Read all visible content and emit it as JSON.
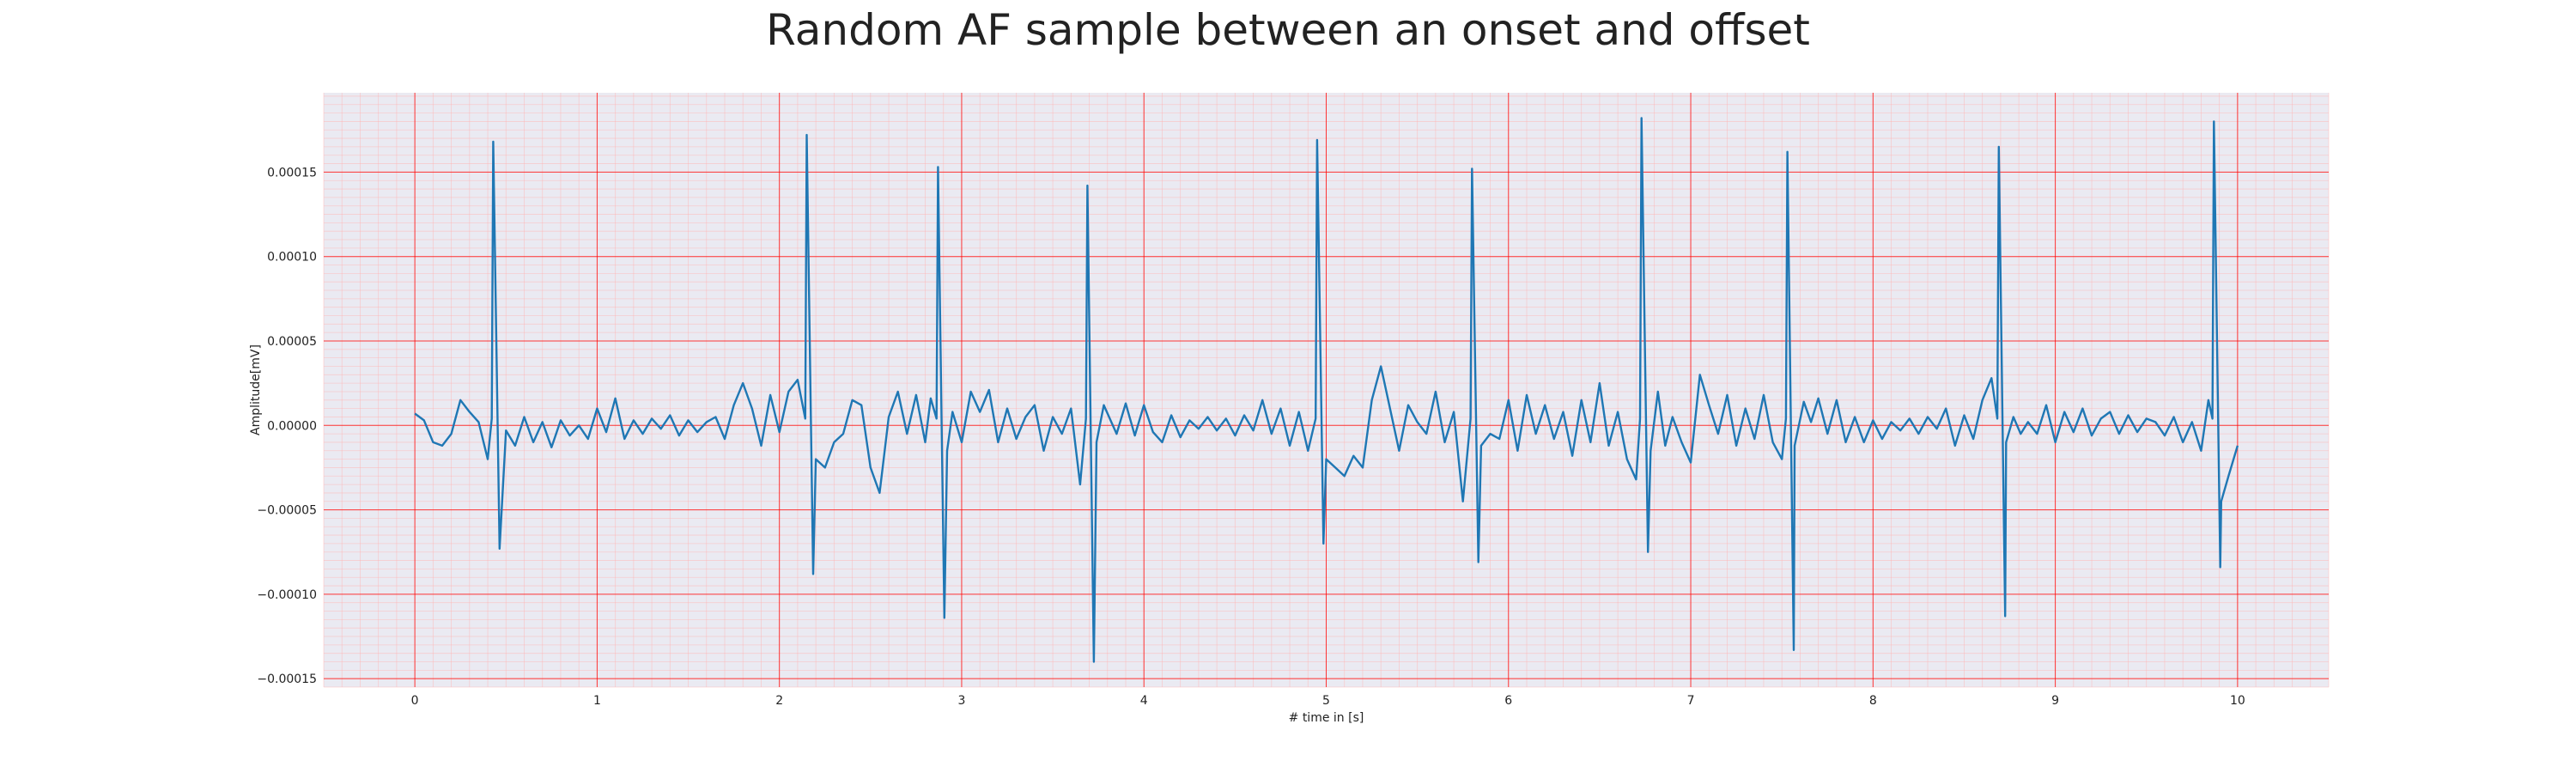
{
  "chart_data": {
    "type": "line",
    "title": "Random AF sample between an onset and offset",
    "xlabel": "# time in [s]",
    "ylabel": "Amplitude[mV]",
    "xlim": [
      -0.5,
      10.5
    ],
    "ylim": [
      -0.000155,
      0.000197
    ],
    "x_ticks": [
      0,
      1,
      2,
      3,
      4,
      5,
      6,
      7,
      8,
      9,
      10
    ],
    "x_tick_labels": [
      "0",
      "1",
      "2",
      "3",
      "4",
      "5",
      "6",
      "7",
      "8",
      "9",
      "10"
    ],
    "y_ticks": [
      -0.00015,
      -0.0001,
      -5e-05,
      0,
      5e-05,
      0.0001,
      0.00015
    ],
    "y_tick_labels": [
      "−0.00015",
      "−0.00010",
      "−0.00005",
      "0.00000",
      "0.00005",
      "0.00010",
      "0.00015"
    ],
    "grid": true,
    "minor_grid": true,
    "colors": {
      "line": "#1f77b4",
      "plot_background": "#eaeaf2",
      "major_grid": "#ff0000",
      "minor_grid": "#ffb3b3"
    },
    "series": [
      {
        "peaks": [
          [
            0.43,
            0.000168,
            -7.3e-05
          ],
          [
            2.15,
            0.000172,
            -8.8e-05
          ],
          [
            2.87,
            0.000153,
            -0.000114
          ],
          [
            3.69,
            0.000142,
            -0.00014
          ],
          [
            4.95,
            0.000169,
            -7e-05
          ],
          [
            5.8,
            0.000152,
            -8.1e-05
          ],
          [
            6.73,
            0.000182,
            -7.5e-05
          ],
          [
            7.53,
            0.000162,
            -0.000133
          ],
          [
            8.69,
            0.000165,
            -0.000113
          ],
          [
            9.87,
            0.00018,
            -8.4e-05
          ]
        ],
        "points": [
          [
            0.0,
            7e-06
          ],
          [
            0.05,
            3e-06
          ],
          [
            0.1,
            -1e-05
          ],
          [
            0.15,
            -1.2e-05
          ],
          [
            0.2,
            -5e-06
          ],
          [
            0.25,
            1.5e-05
          ],
          [
            0.3,
            8e-06
          ],
          [
            0.35,
            2e-06
          ],
          [
            0.4,
            -2e-05
          ],
          [
            0.5,
            -3e-06
          ],
          [
            0.55,
            -1.2e-05
          ],
          [
            0.6,
            5e-06
          ],
          [
            0.65,
            -1e-05
          ],
          [
            0.7,
            2e-06
          ],
          [
            0.75,
            -1.3e-05
          ],
          [
            0.8,
            3e-06
          ],
          [
            0.85,
            -6e-06
          ],
          [
            0.9,
            0.0
          ],
          [
            0.95,
            -8e-06
          ],
          [
            1.0,
            1e-05
          ],
          [
            1.05,
            -4e-06
          ],
          [
            1.1,
            1.6e-05
          ],
          [
            1.15,
            -8e-06
          ],
          [
            1.2,
            3e-06
          ],
          [
            1.25,
            -5e-06
          ],
          [
            1.3,
            4e-06
          ],
          [
            1.35,
            -2e-06
          ],
          [
            1.4,
            6e-06
          ],
          [
            1.45,
            -6e-06
          ],
          [
            1.5,
            3e-06
          ],
          [
            1.55,
            -4e-06
          ],
          [
            1.6,
            2e-06
          ],
          [
            1.65,
            5e-06
          ],
          [
            1.7,
            -8e-06
          ],
          [
            1.75,
            1.2e-05
          ],
          [
            1.8,
            2.5e-05
          ],
          [
            1.85,
            1e-05
          ],
          [
            1.9,
            -1.2e-05
          ],
          [
            1.95,
            1.8e-05
          ],
          [
            2.0,
            -4e-06
          ],
          [
            2.05,
            2e-05
          ],
          [
            2.1,
            2.7e-05
          ],
          [
            2.2,
            -2e-05
          ],
          [
            2.25,
            -2.5e-05
          ],
          [
            2.3,
            -1e-05
          ],
          [
            2.35,
            -5e-06
          ],
          [
            2.4,
            1.5e-05
          ],
          [
            2.45,
            1.2e-05
          ],
          [
            2.5,
            -2.5e-05
          ],
          [
            2.55,
            -4e-05
          ],
          [
            2.6,
            5e-06
          ],
          [
            2.65,
            2e-05
          ],
          [
            2.7,
            -5e-06
          ],
          [
            2.75,
            1.8e-05
          ],
          [
            2.8,
            -1e-05
          ],
          [
            2.83,
            1.6e-05
          ],
          [
            2.92,
            -1.5e-05
          ],
          [
            2.95,
            8e-06
          ],
          [
            3.0,
            -1e-05
          ],
          [
            3.05,
            2e-05
          ],
          [
            3.1,
            8e-06
          ],
          [
            3.15,
            2.1e-05
          ],
          [
            3.2,
            -1e-05
          ],
          [
            3.25,
            1e-05
          ],
          [
            3.3,
            -8e-06
          ],
          [
            3.35,
            5e-06
          ],
          [
            3.4,
            1.2e-05
          ],
          [
            3.45,
            -1.5e-05
          ],
          [
            3.5,
            5e-06
          ],
          [
            3.55,
            -5e-06
          ],
          [
            3.6,
            1e-05
          ],
          [
            3.65,
            -3.5e-05
          ],
          [
            3.74,
            -1e-05
          ],
          [
            3.78,
            1.2e-05
          ],
          [
            3.85,
            -5e-06
          ],
          [
            3.9,
            1.3e-05
          ],
          [
            3.95,
            -6e-06
          ],
          [
            4.0,
            1.2e-05
          ],
          [
            4.05,
            -4e-06
          ],
          [
            4.1,
            -1e-05
          ],
          [
            4.15,
            6e-06
          ],
          [
            4.2,
            -7e-06
          ],
          [
            4.25,
            3e-06
          ],
          [
            4.3,
            -2e-06
          ],
          [
            4.35,
            5e-06
          ],
          [
            4.4,
            -3e-06
          ],
          [
            4.45,
            4e-06
          ],
          [
            4.5,
            -6e-06
          ],
          [
            4.55,
            6e-06
          ],
          [
            4.6,
            -3e-06
          ],
          [
            4.65,
            1.5e-05
          ],
          [
            4.7,
            -5e-06
          ],
          [
            4.75,
            1e-05
          ],
          [
            4.8,
            -1.2e-05
          ],
          [
            4.85,
            8e-06
          ],
          [
            4.9,
            -1.5e-05
          ],
          [
            5.0,
            -2e-05
          ],
          [
            5.05,
            -2.5e-05
          ],
          [
            5.1,
            -3e-05
          ],
          [
            5.15,
            -1.8e-05
          ],
          [
            5.2,
            -2.5e-05
          ],
          [
            5.25,
            1.5e-05
          ],
          [
            5.3,
            3.5e-05
          ],
          [
            5.35,
            1e-05
          ],
          [
            5.4,
            -1.5e-05
          ],
          [
            5.45,
            1.2e-05
          ],
          [
            5.5,
            2e-06
          ],
          [
            5.55,
            -5e-06
          ],
          [
            5.6,
            2e-05
          ],
          [
            5.65,
            -1e-05
          ],
          [
            5.7,
            8e-06
          ],
          [
            5.75,
            -4.5e-05
          ],
          [
            5.85,
            -1.2e-05
          ],
          [
            5.9,
            -5e-06
          ],
          [
            5.95,
            -8e-06
          ],
          [
            6.0,
            1.5e-05
          ],
          [
            6.05,
            -1.5e-05
          ],
          [
            6.1,
            1.8e-05
          ],
          [
            6.15,
            -5e-06
          ],
          [
            6.2,
            1.2e-05
          ],
          [
            6.25,
            -8e-06
          ],
          [
            6.3,
            8e-06
          ],
          [
            6.35,
            -1.8e-05
          ],
          [
            6.4,
            1.5e-05
          ],
          [
            6.45,
            -1e-05
          ],
          [
            6.5,
            2.5e-05
          ],
          [
            6.55,
            -1.2e-05
          ],
          [
            6.6,
            8e-06
          ],
          [
            6.65,
            -2e-05
          ],
          [
            6.7,
            -3.2e-05
          ],
          [
            6.78,
            -1.5e-05
          ],
          [
            6.82,
            2e-05
          ],
          [
            6.86,
            -1.2e-05
          ],
          [
            6.9,
            5e-06
          ],
          [
            6.95,
            -1e-05
          ],
          [
            7.0,
            -2.2e-05
          ],
          [
            7.05,
            3e-05
          ],
          [
            7.1,
            1.2e-05
          ],
          [
            7.15,
            -5e-06
          ],
          [
            7.2,
            1.8e-05
          ],
          [
            7.25,
            -1.2e-05
          ],
          [
            7.3,
            1e-05
          ],
          [
            7.35,
            -8e-06
          ],
          [
            7.4,
            1.8e-05
          ],
          [
            7.45,
            -1e-05
          ],
          [
            7.5,
            -2e-05
          ],
          [
            7.57,
            -1.2e-05
          ],
          [
            7.62,
            1.4e-05
          ],
          [
            7.66,
            2e-06
          ],
          [
            7.7,
            1.6e-05
          ],
          [
            7.75,
            -5e-06
          ],
          [
            7.8,
            1.5e-05
          ],
          [
            7.85,
            -1e-05
          ],
          [
            7.9,
            5e-06
          ],
          [
            7.95,
            -1e-05
          ],
          [
            8.0,
            3e-06
          ],
          [
            8.05,
            -8e-06
          ],
          [
            8.1,
            2e-06
          ],
          [
            8.15,
            -3e-06
          ],
          [
            8.2,
            4e-06
          ],
          [
            8.25,
            -5e-06
          ],
          [
            8.3,
            5e-06
          ],
          [
            8.35,
            -2e-06
          ],
          [
            8.4,
            1e-05
          ],
          [
            8.45,
            -1.2e-05
          ],
          [
            8.5,
            6e-06
          ],
          [
            8.55,
            -8e-06
          ],
          [
            8.6,
            1.5e-05
          ],
          [
            8.65,
            2.8e-05
          ],
          [
            8.73,
            -1e-05
          ],
          [
            8.77,
            5e-06
          ],
          [
            8.81,
            -5e-06
          ],
          [
            8.85,
            2e-06
          ],
          [
            8.9,
            -5e-06
          ],
          [
            8.95,
            1.2e-05
          ],
          [
            9.0,
            -1e-05
          ],
          [
            9.05,
            8e-06
          ],
          [
            9.1,
            -4e-06
          ],
          [
            9.15,
            1e-05
          ],
          [
            9.2,
            -6e-06
          ],
          [
            9.25,
            4e-06
          ],
          [
            9.3,
            8e-06
          ],
          [
            9.35,
            -5e-06
          ],
          [
            9.4,
            6e-06
          ],
          [
            9.45,
            -4e-06
          ],
          [
            9.5,
            4e-06
          ],
          [
            9.55,
            2e-06
          ],
          [
            9.6,
            -6e-06
          ],
          [
            9.65,
            5e-06
          ],
          [
            9.7,
            -1e-05
          ],
          [
            9.75,
            2e-06
          ],
          [
            9.8,
            -1.5e-05
          ],
          [
            9.84,
            1.5e-05
          ],
          [
            9.91,
            -4.5e-05
          ],
          [
            9.95,
            -3e-05
          ],
          [
            10.0,
            -1.2e-05
          ]
        ]
      }
    ]
  }
}
